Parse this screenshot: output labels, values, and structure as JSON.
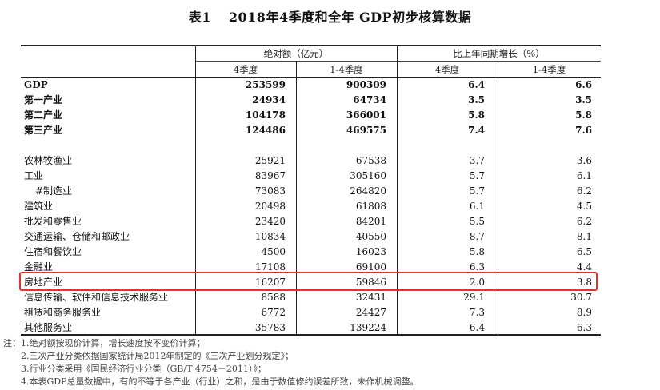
{
  "title": {
    "number": "表1",
    "text": "2018年4季度和全年 GDP初步核算数据"
  },
  "header": {
    "group_abs": "绝对额（亿元）",
    "group_growth": "比上年同期增长（%）",
    "sub": [
      "4季度",
      "1-4季度",
      "4季度",
      "1-4季度"
    ]
  },
  "rows": [
    {
      "label": "GDP",
      "bold": true,
      "v": [
        "253599",
        "900309",
        "6.4",
        "6.6"
      ]
    },
    {
      "label": "第一产业",
      "bold": true,
      "v": [
        "24934",
        "64734",
        "3.5",
        "3.5"
      ]
    },
    {
      "label": "第二产业",
      "bold": true,
      "v": [
        "104178",
        "366001",
        "5.8",
        "5.8"
      ]
    },
    {
      "label": "第三产业",
      "bold": true,
      "v": [
        "124486",
        "469575",
        "7.4",
        "7.6"
      ]
    },
    {
      "label": "农林牧渔业",
      "bold": false,
      "v": [
        "25921",
        "67538",
        "3.7",
        "3.6"
      ]
    },
    {
      "label": "工业",
      "bold": false,
      "v": [
        "83967",
        "305160",
        "5.7",
        "6.1"
      ]
    },
    {
      "label": "#制造业",
      "bold": false,
      "indent": true,
      "v": [
        "73083",
        "264820",
        "5.7",
        "6.2"
      ]
    },
    {
      "label": "建筑业",
      "bold": false,
      "v": [
        "20498",
        "61808",
        "6.1",
        "4.5"
      ]
    },
    {
      "label": "批发和零售业",
      "bold": false,
      "v": [
        "23420",
        "84201",
        "5.5",
        "6.2"
      ]
    },
    {
      "label": "交通运输、仓储和邮政业",
      "bold": false,
      "v": [
        "10834",
        "40550",
        "8.7",
        "8.1"
      ]
    },
    {
      "label": "住宿和餐饮业",
      "bold": false,
      "v": [
        "4500",
        "16023",
        "5.8",
        "6.5"
      ]
    },
    {
      "label": "金融业",
      "bold": false,
      "v": [
        "17108",
        "69100",
        "6.3",
        "4.4"
      ]
    },
    {
      "label": "房地产业",
      "bold": false,
      "highlight": true,
      "v": [
        "16207",
        "59846",
        "2.0",
        "3.8"
      ]
    },
    {
      "label": "信息传输、软件和信息技术服务业",
      "bold": false,
      "v": [
        "8588",
        "32431",
        "29.1",
        "30.7"
      ]
    },
    {
      "label": "租赁和商务服务业",
      "bold": false,
      "v": [
        "6772",
        "24427",
        "7.3",
        "8.9"
      ]
    },
    {
      "label": "其他服务业",
      "bold": false,
      "v": [
        "35783",
        "139224",
        "6.4",
        "6.3"
      ]
    }
  ],
  "notes": [
    "注：1.绝对额按现价计算，增长速度按不变价计算；",
    "2.三次产业分类依据国家统计局2012年制定的《三次产业划分规定》；",
    "3.行业分类采用《国民经济行业分类（GB/T 4754－2011）》；",
    "4.本表GDP总量数据中，有的不等于各产业（行业）之和，是由于数值修约误差所致，未作机械调整。"
  ],
  "colors": {
    "highlight_border": "#e5312f",
    "rule": "#222222"
  }
}
